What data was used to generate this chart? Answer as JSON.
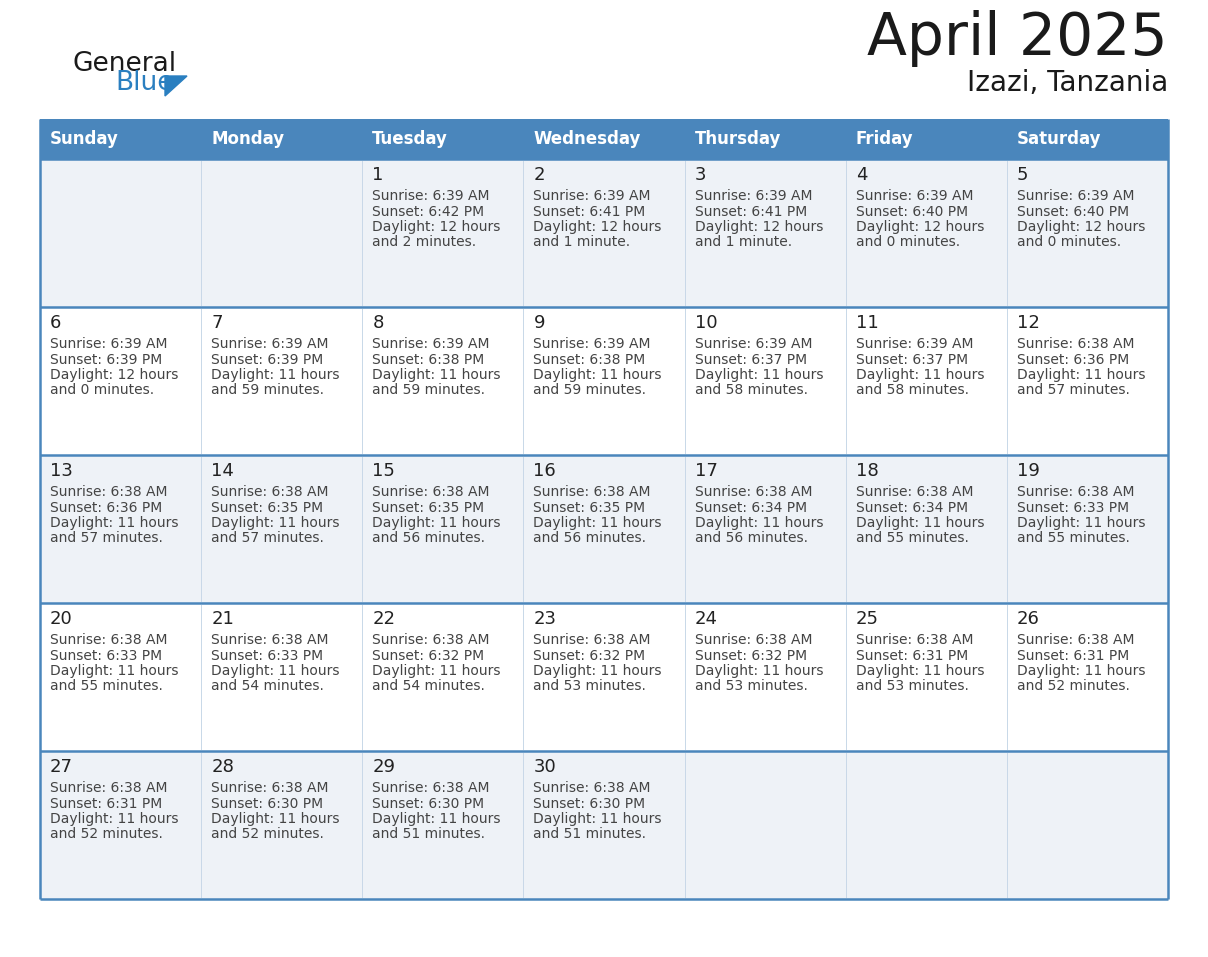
{
  "title": "April 2025",
  "subtitle": "Izazi, Tanzania",
  "header_bg": "#4a86bc",
  "header_text_color": "#ffffff",
  "day_names": [
    "Sunday",
    "Monday",
    "Tuesday",
    "Wednesday",
    "Thursday",
    "Friday",
    "Saturday"
  ],
  "row_bg_light": "#eef2f7",
  "row_bg_white": "#ffffff",
  "cell_border_color": "#4a86bc",
  "cell_divider_color": "#c8d8e8",
  "text_color": "#444444",
  "date_color": "#222222",
  "calendar_data": [
    [
      {
        "day": "",
        "sunrise": "",
        "sunset": "",
        "daylight_hours": "",
        "daylight_mins": ""
      },
      {
        "day": "",
        "sunrise": "",
        "sunset": "",
        "daylight_hours": "",
        "daylight_mins": ""
      },
      {
        "day": "1",
        "sunrise": "6:39 AM",
        "sunset": "6:42 PM",
        "daylight_hours": "12",
        "daylight_mins": "2 minutes."
      },
      {
        "day": "2",
        "sunrise": "6:39 AM",
        "sunset": "6:41 PM",
        "daylight_hours": "12",
        "daylight_mins": "1 minute."
      },
      {
        "day": "3",
        "sunrise": "6:39 AM",
        "sunset": "6:41 PM",
        "daylight_hours": "12",
        "daylight_mins": "1 minute."
      },
      {
        "day": "4",
        "sunrise": "6:39 AM",
        "sunset": "6:40 PM",
        "daylight_hours": "12",
        "daylight_mins": "0 minutes."
      },
      {
        "day": "5",
        "sunrise": "6:39 AM",
        "sunset": "6:40 PM",
        "daylight_hours": "12",
        "daylight_mins": "0 minutes."
      }
    ],
    [
      {
        "day": "6",
        "sunrise": "6:39 AM",
        "sunset": "6:39 PM",
        "daylight_hours": "12",
        "daylight_mins": "0 minutes."
      },
      {
        "day": "7",
        "sunrise": "6:39 AM",
        "sunset": "6:39 PM",
        "daylight_hours": "11",
        "daylight_mins": "59 minutes."
      },
      {
        "day": "8",
        "sunrise": "6:39 AM",
        "sunset": "6:38 PM",
        "daylight_hours": "11",
        "daylight_mins": "59 minutes."
      },
      {
        "day": "9",
        "sunrise": "6:39 AM",
        "sunset": "6:38 PM",
        "daylight_hours": "11",
        "daylight_mins": "59 minutes."
      },
      {
        "day": "10",
        "sunrise": "6:39 AM",
        "sunset": "6:37 PM",
        "daylight_hours": "11",
        "daylight_mins": "58 minutes."
      },
      {
        "day": "11",
        "sunrise": "6:39 AM",
        "sunset": "6:37 PM",
        "daylight_hours": "11",
        "daylight_mins": "58 minutes."
      },
      {
        "day": "12",
        "sunrise": "6:38 AM",
        "sunset": "6:36 PM",
        "daylight_hours": "11",
        "daylight_mins": "57 minutes."
      }
    ],
    [
      {
        "day": "13",
        "sunrise": "6:38 AM",
        "sunset": "6:36 PM",
        "daylight_hours": "11",
        "daylight_mins": "57 minutes."
      },
      {
        "day": "14",
        "sunrise": "6:38 AM",
        "sunset": "6:35 PM",
        "daylight_hours": "11",
        "daylight_mins": "57 minutes."
      },
      {
        "day": "15",
        "sunrise": "6:38 AM",
        "sunset": "6:35 PM",
        "daylight_hours": "11",
        "daylight_mins": "56 minutes."
      },
      {
        "day": "16",
        "sunrise": "6:38 AM",
        "sunset": "6:35 PM",
        "daylight_hours": "11",
        "daylight_mins": "56 minutes."
      },
      {
        "day": "17",
        "sunrise": "6:38 AM",
        "sunset": "6:34 PM",
        "daylight_hours": "11",
        "daylight_mins": "56 minutes."
      },
      {
        "day": "18",
        "sunrise": "6:38 AM",
        "sunset": "6:34 PM",
        "daylight_hours": "11",
        "daylight_mins": "55 minutes."
      },
      {
        "day": "19",
        "sunrise": "6:38 AM",
        "sunset": "6:33 PM",
        "daylight_hours": "11",
        "daylight_mins": "55 minutes."
      }
    ],
    [
      {
        "day": "20",
        "sunrise": "6:38 AM",
        "sunset": "6:33 PM",
        "daylight_hours": "11",
        "daylight_mins": "55 minutes."
      },
      {
        "day": "21",
        "sunrise": "6:38 AM",
        "sunset": "6:33 PM",
        "daylight_hours": "11",
        "daylight_mins": "54 minutes."
      },
      {
        "day": "22",
        "sunrise": "6:38 AM",
        "sunset": "6:32 PM",
        "daylight_hours": "11",
        "daylight_mins": "54 minutes."
      },
      {
        "day": "23",
        "sunrise": "6:38 AM",
        "sunset": "6:32 PM",
        "daylight_hours": "11",
        "daylight_mins": "53 minutes."
      },
      {
        "day": "24",
        "sunrise": "6:38 AM",
        "sunset": "6:32 PM",
        "daylight_hours": "11",
        "daylight_mins": "53 minutes."
      },
      {
        "day": "25",
        "sunrise": "6:38 AM",
        "sunset": "6:31 PM",
        "daylight_hours": "11",
        "daylight_mins": "53 minutes."
      },
      {
        "day": "26",
        "sunrise": "6:38 AM",
        "sunset": "6:31 PM",
        "daylight_hours": "11",
        "daylight_mins": "52 minutes."
      }
    ],
    [
      {
        "day": "27",
        "sunrise": "6:38 AM",
        "sunset": "6:31 PM",
        "daylight_hours": "11",
        "daylight_mins": "52 minutes."
      },
      {
        "day": "28",
        "sunrise": "6:38 AM",
        "sunset": "6:30 PM",
        "daylight_hours": "11",
        "daylight_mins": "52 minutes."
      },
      {
        "day": "29",
        "sunrise": "6:38 AM",
        "sunset": "6:30 PM",
        "daylight_hours": "11",
        "daylight_mins": "51 minutes."
      },
      {
        "day": "30",
        "sunrise": "6:38 AM",
        "sunset": "6:30 PM",
        "daylight_hours": "11",
        "daylight_mins": "51 minutes."
      },
      {
        "day": "",
        "sunrise": "",
        "sunset": "",
        "daylight_hours": "",
        "daylight_mins": ""
      },
      {
        "day": "",
        "sunrise": "",
        "sunset": "",
        "daylight_hours": "",
        "daylight_mins": ""
      },
      {
        "day": "",
        "sunrise": "",
        "sunset": "",
        "daylight_hours": "",
        "daylight_mins": ""
      }
    ]
  ],
  "logo_text_general": "General",
  "logo_text_blue": "Blue",
  "logo_color_general": "#1a1a1a",
  "logo_color_blue": "#2a7fc0",
  "logo_triangle_color": "#2a7fc0",
  "title_fontsize": 42,
  "subtitle_fontsize": 20,
  "header_fontsize": 12,
  "day_num_fontsize": 13,
  "cell_text_fontsize": 10
}
